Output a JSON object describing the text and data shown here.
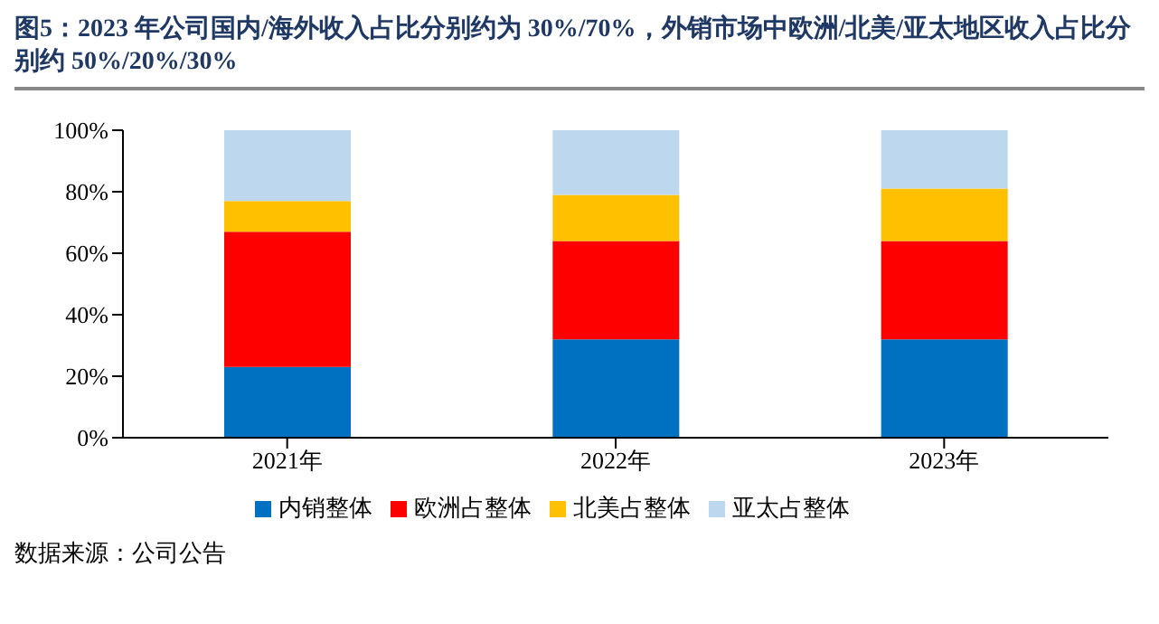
{
  "chart_data": {
    "type": "bar",
    "title": "图5：2023 年公司国内/海外收入占比分别约为 30%/70%，外销市场中欧洲/北美/亚太地区收入占比分别约 50%/20%/30%",
    "categories": [
      "2021年",
      "2022年",
      "2023年"
    ],
    "series": [
      {
        "name": "内销整体",
        "color": "#0070c0",
        "values": [
          23,
          32,
          32
        ]
      },
      {
        "name": "欧洲占整体",
        "color": "#ff0000",
        "values": [
          44,
          32,
          32
        ]
      },
      {
        "name": "北美占整体",
        "color": "#ffc000",
        "values": [
          10,
          15,
          17
        ]
      },
      {
        "name": "亚太占整体",
        "color": "#bdd7ee",
        "values": [
          23,
          21,
          19
        ]
      }
    ],
    "stacked": true,
    "ylim": [
      0,
      100
    ],
    "yticks": [
      {
        "value": 0,
        "label": "0%"
      },
      {
        "value": 20,
        "label": "20%"
      },
      {
        "value": 40,
        "label": "40%"
      },
      {
        "value": 60,
        "label": "60%"
      },
      {
        "value": 80,
        "label": "80%"
      },
      {
        "value": 100,
        "label": "100%"
      }
    ],
    "grid": false,
    "legend": "bottom",
    "annotations": [
      "数据来源：公司公告"
    ]
  }
}
